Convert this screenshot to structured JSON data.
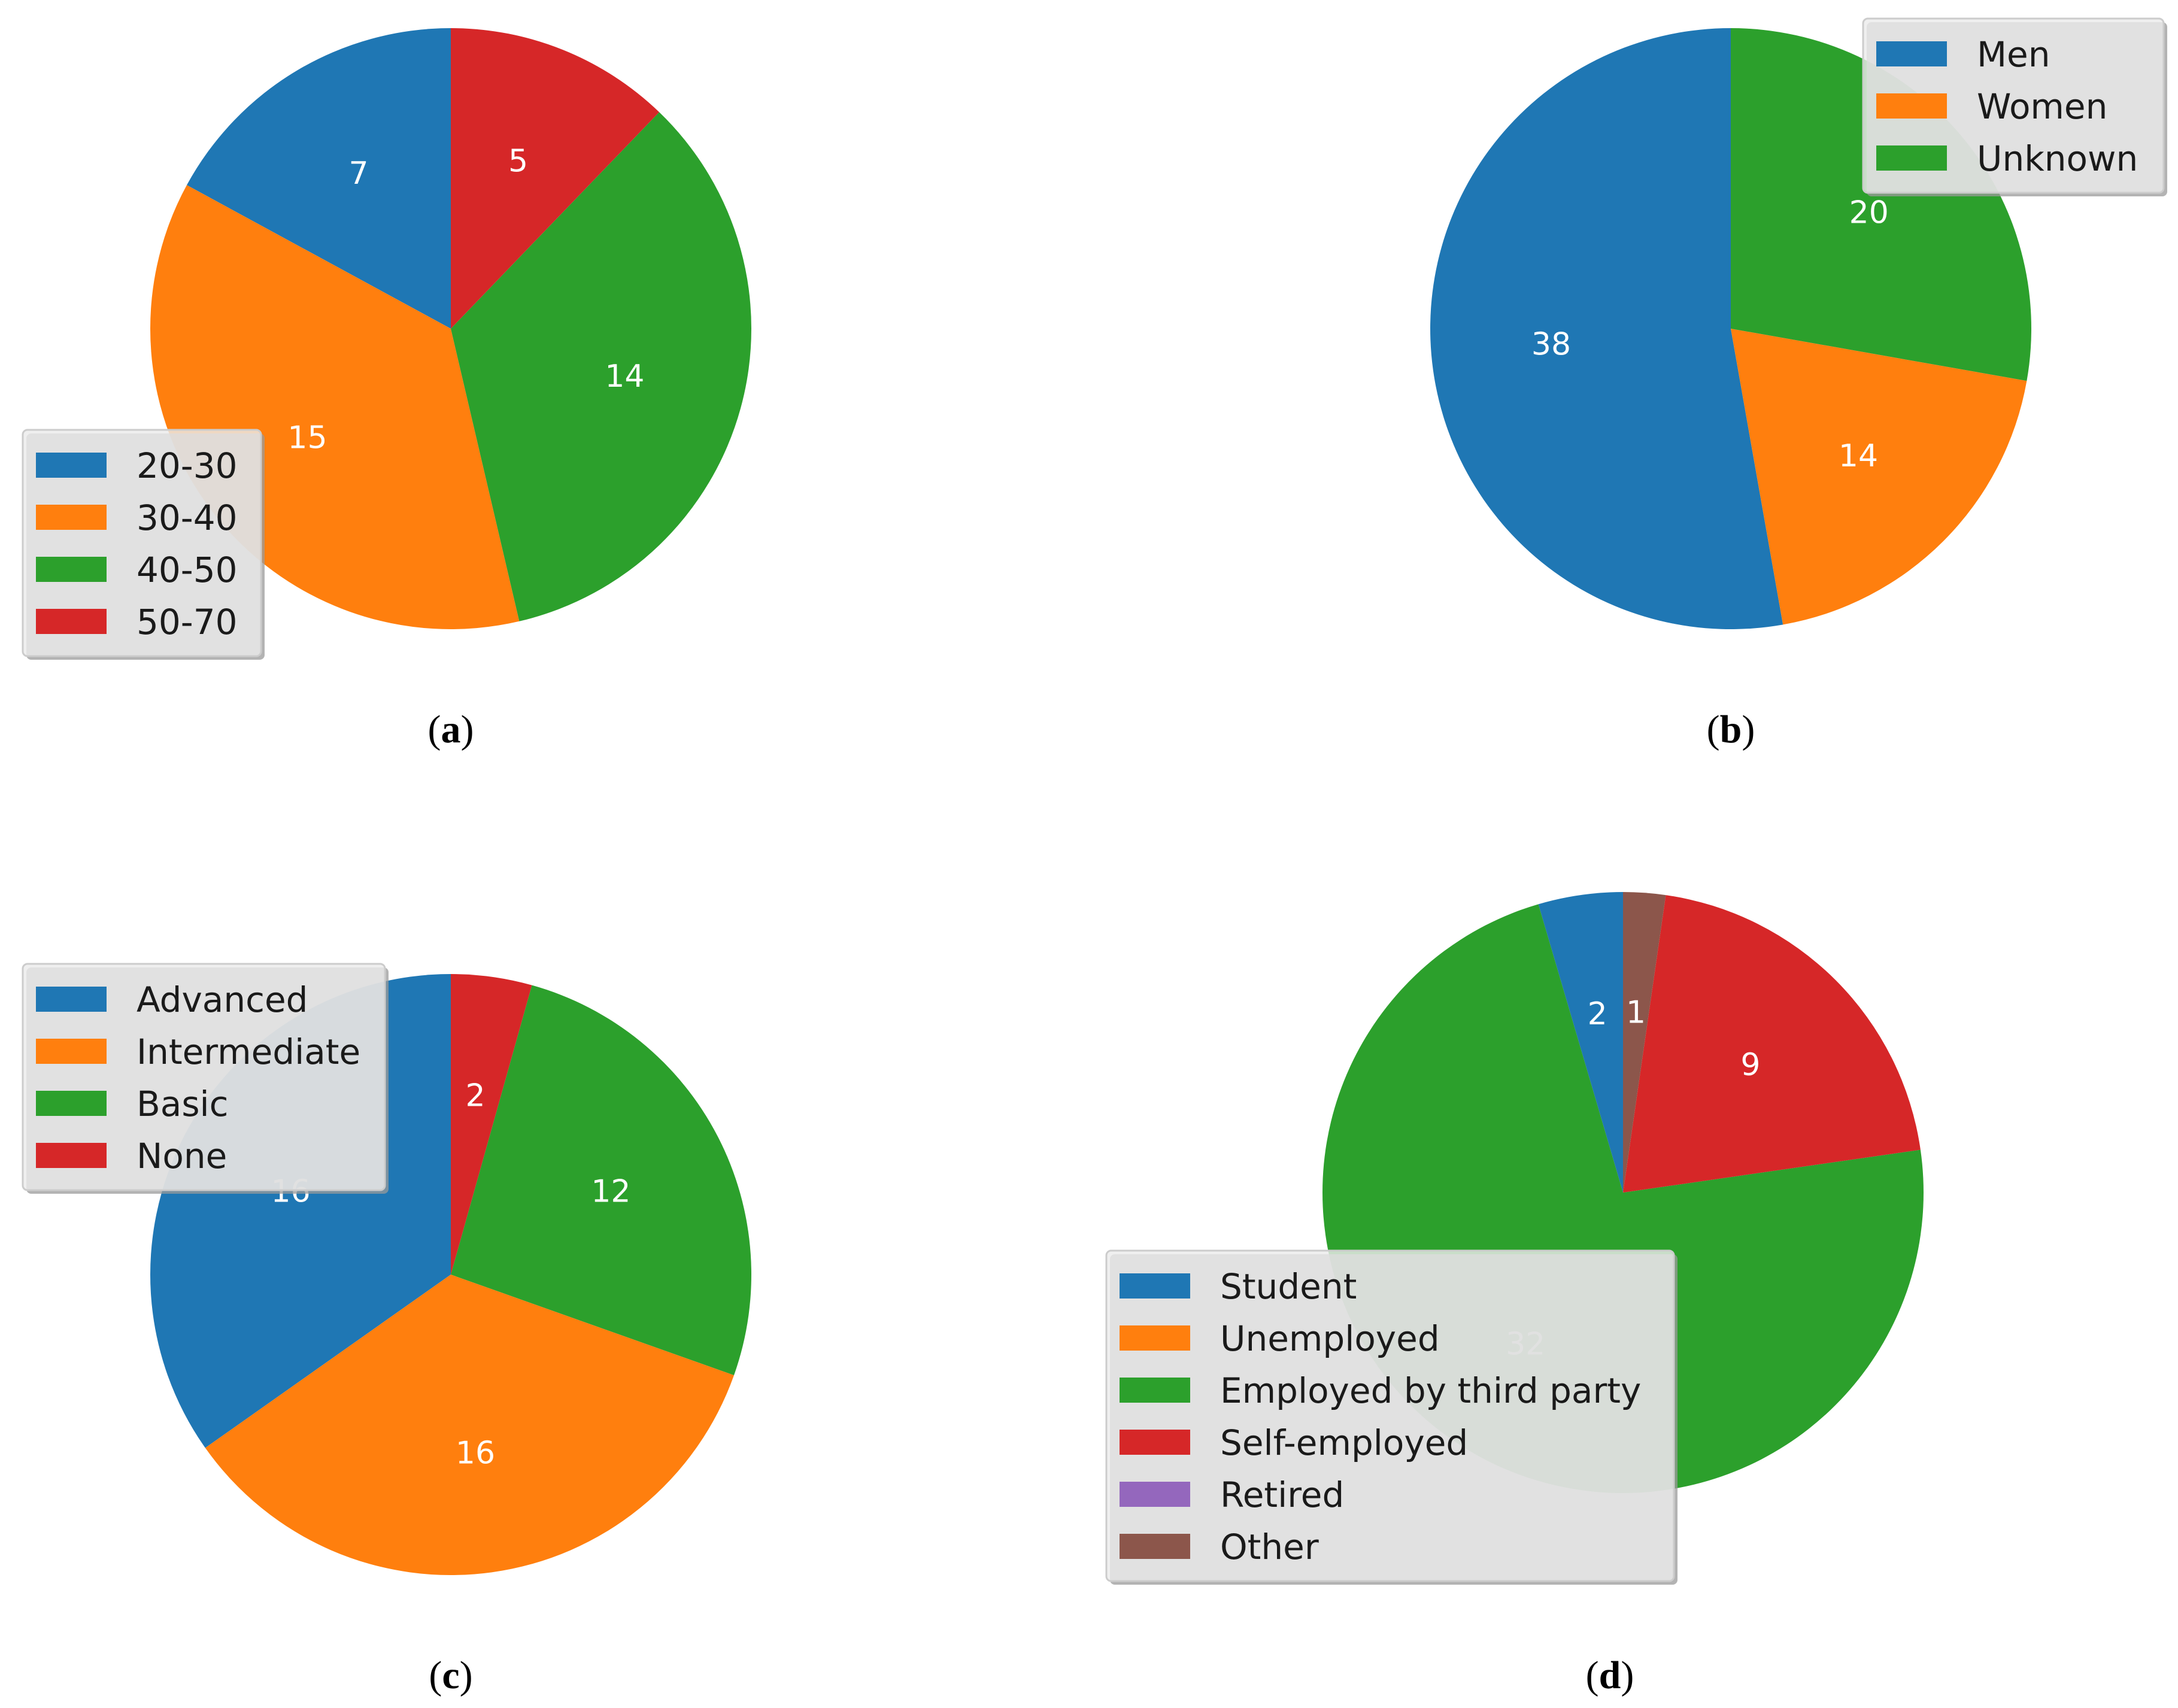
{
  "chart_data": [
    {
      "type": "pie",
      "caption_letter": "a",
      "categories": [
        "20-30",
        "30-40",
        "40-50",
        "50-70"
      ],
      "values": [
        7,
        15,
        14,
        5
      ],
      "colors": [
        "#1f77b4",
        "#ff7f0e",
        "#2ca02c",
        "#d62728"
      ],
      "legend_labels": [
        "20-30",
        "30-40",
        "40-50",
        "50-70"
      ],
      "legend_position": "lower-left"
    },
    {
      "type": "pie",
      "caption_letter": "b",
      "categories": [
        "Men",
        "Women",
        "Unknown"
      ],
      "values": [
        38,
        14,
        20
      ],
      "colors": [
        "#1f77b4",
        "#ff7f0e",
        "#2ca02c"
      ],
      "legend_labels": [
        "Men",
        "Women",
        "Unknown"
      ],
      "legend_position": "upper-right"
    },
    {
      "type": "pie",
      "caption_letter": "c",
      "categories": [
        "Advanced",
        "Intermediate",
        "Basic",
        "None"
      ],
      "values": [
        16,
        16,
        12,
        2
      ],
      "colors": [
        "#1f77b4",
        "#ff7f0e",
        "#2ca02c",
        "#d62728"
      ],
      "legend_labels": [
        "Advanced",
        "Intermediate",
        "Basic",
        "None"
      ],
      "legend_position": "upper-left"
    },
    {
      "type": "pie",
      "caption_letter": "d",
      "categories": [
        "Student",
        "Unemployed",
        "Employed by third party",
        "Self-employed",
        "Retired",
        "Other"
      ],
      "values": [
        2,
        0,
        32,
        9,
        0,
        1
      ],
      "colors": [
        "#1f77b4",
        "#ff7f0e",
        "#2ca02c",
        "#d62728",
        "#9467bd",
        "#8c564b"
      ],
      "legend_labels": [
        "Student",
        "Unemployed",
        "Employed by third party",
        "Self-employed",
        "Retired",
        "Other"
      ],
      "legend_position": "lower-left"
    }
  ]
}
